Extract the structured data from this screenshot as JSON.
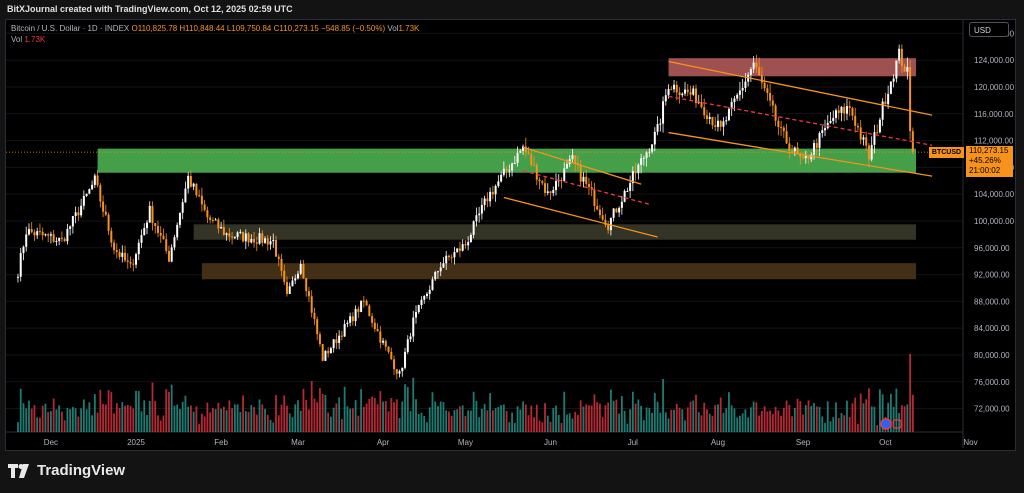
{
  "header": {
    "title": "BitXJournal created with TradingView.com, Oct 12, 2025 02:59 UTC"
  },
  "legend": {
    "symbol": "Bitcoin / U.S. Dollar · 1D · INDEX",
    "open": "O110,825.78",
    "high": "H110,848.44",
    "low": "L109,750.84",
    "close": "C110,273.15",
    "change": "−548.85 (−0.50%)",
    "vol_label": "Vol",
    "vol_value": "1.73K",
    "vol_row_label": "Vol",
    "vol_row_value": "1.73K"
  },
  "price_scale": {
    "currency": "USD"
  },
  "price_tag": {
    "symbol": "BTCUSD",
    "price": "110,273.15",
    "change": "+45.26%",
    "countdown": "21:00:02"
  },
  "footer": {
    "brand": "TradingView"
  },
  "colors": {
    "up": "#ffffff",
    "down": "#f7931a",
    "vol_up": "#26a69a",
    "vol_down": "#f23645",
    "accent": "#f7931a"
  },
  "chart_data": {
    "type": "candlestick",
    "x_tick_labels": [
      "Dec",
      "2025",
      "Feb",
      "Mar",
      "Apr",
      "May",
      "Jun",
      "Jul",
      "Aug",
      "Sep",
      "Oct",
      "Nov"
    ],
    "y_tick_labels": [
      "128,000.00",
      "124,000.00",
      "120,000.00",
      "116,000.00",
      "112,000.00",
      "108,000.00",
      "104,000.00",
      "100,000.00",
      "96,000.00",
      "92,000.00",
      "88,000.00",
      "84,000.00",
      "80,000.00",
      "76,000.00",
      "72,000.00"
    ],
    "ylim": [
      68500,
      130000
    ],
    "zones": [
      {
        "color": "#b05a5a",
        "y_top": 124300,
        "y_bottom": 121600,
        "x_start": "2025-07-14",
        "x_end": "2025-11-01"
      },
      {
        "color": "#4caf50",
        "y_top": 110800,
        "y_bottom": 107200,
        "x_start": "2024-12-18",
        "x_end": "2025-11-01"
      },
      {
        "color": "#3a3a2a",
        "y_top": 99500,
        "y_bottom": 97200,
        "x_start": "2025-01-22",
        "x_end": "2025-11-01"
      },
      {
        "color": "#4a3418",
        "y_top": 93700,
        "y_bottom": 91300,
        "x_start": "2025-01-25",
        "x_end": "2025-11-01"
      }
    ],
    "trendlines": [
      {
        "color": "#f7931a",
        "dash": false,
        "points": [
          [
            "2025-05-22",
            111000
          ],
          [
            "2025-07-04",
            105500
          ]
        ]
      },
      {
        "color": "#f7931a",
        "dash": false,
        "points": [
          [
            "2025-05-15",
            103500
          ],
          [
            "2025-07-10",
            97600
          ]
        ]
      },
      {
        "color": "#f23645",
        "dash": true,
        "points": [
          [
            "2025-05-22",
            107500
          ],
          [
            "2025-07-07",
            102500
          ]
        ]
      },
      {
        "color": "#f7931a",
        "dash": false,
        "points": [
          [
            "2025-07-14",
            123800
          ],
          [
            "2025-10-18",
            115800
          ]
        ]
      },
      {
        "color": "#f7931a",
        "dash": false,
        "points": [
          [
            "2025-07-14",
            113200
          ],
          [
            "2025-10-18",
            106700
          ]
        ]
      },
      {
        "color": "#f23645",
        "dash": true,
        "points": [
          [
            "2025-07-14",
            118600
          ],
          [
            "2025-10-18",
            111300
          ]
        ]
      }
    ],
    "anchors": [
      [
        "2024-11-19",
        92500
      ],
      [
        "2024-11-22",
        98500
      ],
      [
        "2024-12-05",
        97000
      ],
      [
        "2024-12-17",
        106000
      ],
      [
        "2024-12-24",
        96000
      ],
      [
        "2024-12-30",
        93000
      ],
      [
        "2025-01-06",
        101500
      ],
      [
        "2025-01-13",
        94500
      ],
      [
        "2025-01-20",
        106500
      ],
      [
        "2025-01-27",
        100500
      ],
      [
        "2025-02-03",
        98000
      ],
      [
        "2025-02-20",
        97000
      ],
      [
        "2025-02-25",
        88500
      ],
      [
        "2025-03-02",
        94000
      ],
      [
        "2025-03-10",
        79500
      ],
      [
        "2025-03-25",
        88000
      ],
      [
        "2025-03-31",
        82500
      ],
      [
        "2025-04-07",
        77000
      ],
      [
        "2025-04-12",
        85000
      ],
      [
        "2025-04-22",
        93500
      ],
      [
        "2025-05-01",
        96500
      ],
      [
        "2025-05-09",
        103500
      ],
      [
        "2025-05-22",
        111000
      ],
      [
        "2025-05-31",
        104000
      ],
      [
        "2025-06-09",
        109000
      ],
      [
        "2025-06-22",
        99500
      ],
      [
        "2025-07-01",
        106500
      ],
      [
        "2025-07-10",
        113500
      ],
      [
        "2025-07-14",
        120500
      ],
      [
        "2025-07-24",
        118500
      ],
      [
        "2025-08-02",
        113500
      ],
      [
        "2025-08-14",
        123500
      ],
      [
        "2025-08-24",
        113000
      ],
      [
        "2025-09-01",
        108500
      ],
      [
        "2025-09-12",
        115500
      ],
      [
        "2025-09-18",
        117000
      ],
      [
        "2025-09-25",
        109500
      ],
      [
        "2025-10-01",
        118500
      ],
      [
        "2025-10-06",
        124800
      ],
      [
        "2025-10-09",
        122000
      ],
      [
        "2025-10-10",
        113000
      ],
      [
        "2025-10-11",
        110273
      ]
    ],
    "last_price": 110273.15
  }
}
